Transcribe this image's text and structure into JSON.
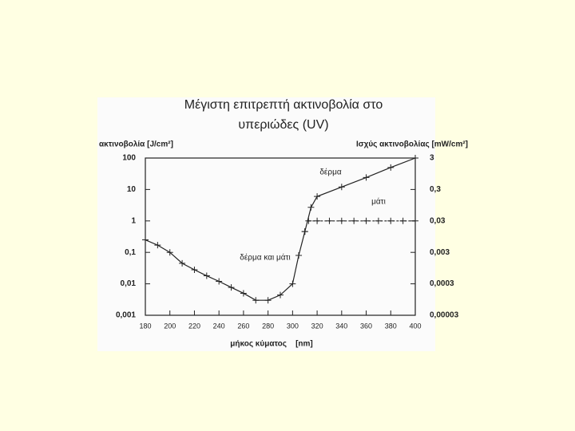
{
  "chart_data": {
    "type": "line",
    "title": [
      "Μέγιστη επιτρεπτή ακτινοβολία στο",
      "υπεριώδες (UV)"
    ],
    "y_label": "ακτινοβολία [J/cm²]",
    "y2_label": "Ισχύς ακτινοβολίας [mW/cm²]",
    "x_label": "μήκος κύματος    [nm]",
    "xlim": [
      180,
      400
    ],
    "xticks": [
      180,
      200,
      220,
      240,
      260,
      280,
      300,
      320,
      340,
      360,
      380,
      400
    ],
    "ylim": [
      0.001,
      100
    ],
    "yticks": [
      {
        "value": 0.001,
        "label": "0,001"
      },
      {
        "value": 0.01,
        "label": "0,01"
      },
      {
        "value": 0.1,
        "label": "0,1"
      },
      1,
      10,
      100
    ],
    "y2lim": [
      3e-05,
      3
    ],
    "y2ticks": [
      {
        "value": 3e-05,
        "label": "0,00003"
      },
      {
        "value": 0.0003,
        "label": "0,0003"
      },
      {
        "value": 0.003,
        "label": "0,003"
      },
      {
        "value": 0.03,
        "label": "0,03"
      },
      {
        "value": 0.3,
        "label": "0,3"
      },
      3
    ],
    "log_y": true,
    "grid": false,
    "series": [
      {
        "name": "δέρμα και μάτι",
        "color": "#222222",
        "x": [
          180,
          190,
          200,
          210,
          220,
          230,
          240,
          250,
          260,
          270,
          280,
          290,
          300,
          305,
          310
        ],
        "values": [
          0.25,
          0.17,
          0.1,
          0.045,
          0.028,
          0.018,
          0.012,
          0.0077,
          0.005,
          0.003,
          0.003,
          0.0044,
          0.01,
          0.08,
          0.46
        ]
      },
      {
        "name": "δέρμα",
        "color": "#222222",
        "x": [
          310,
          315,
          320,
          340,
          360,
          380,
          400
        ],
        "values": [
          0.46,
          2.7,
          6,
          12,
          24,
          50,
          100
        ]
      },
      {
        "name": "μάτι",
        "color": "#222222",
        "x": [
          313,
          320,
          330,
          340,
          350,
          360,
          370,
          380,
          390,
          400
        ],
        "values": [
          1,
          1,
          1,
          1,
          1,
          1,
          1,
          1,
          1,
          1
        ]
      }
    ]
  }
}
